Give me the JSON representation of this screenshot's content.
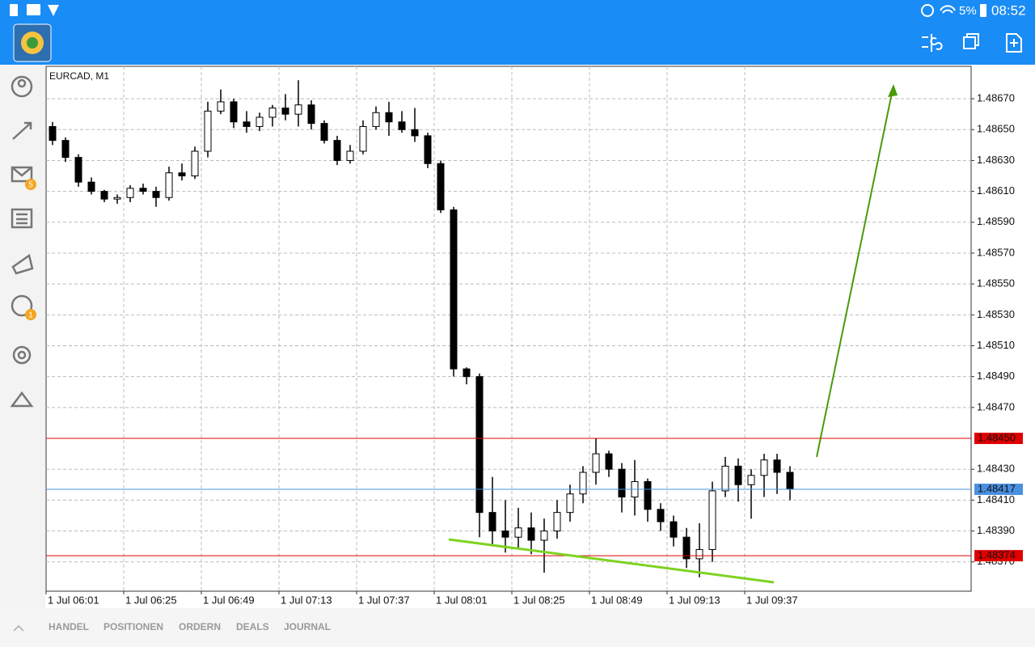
{
  "status_bar": {
    "battery": "5%",
    "time": "08:52"
  },
  "sidebar": {
    "badges": [
      "5",
      "1"
    ]
  },
  "tabs": [
    "HANDEL",
    "POSITIONEN",
    "ORDERN",
    "DEALS",
    "JOURNAL"
  ],
  "chart_data": {
    "type": "candlestick",
    "title": "EURCAD, M1",
    "categories": [
      "1 Jul 06:01",
      null,
      null,
      null,
      null,
      null,
      "1 Jul 06:25",
      null,
      null,
      null,
      null,
      null,
      "1 Jul 06:49",
      null,
      null,
      null,
      null,
      null,
      "1 Jul 07:13",
      null,
      null,
      null,
      null,
      null,
      "1 Jul 07:37",
      null,
      null,
      null,
      null,
      null,
      "1 Jul 08:01",
      null,
      null,
      null,
      null,
      null,
      "1 Jul 08:25",
      null,
      null,
      null,
      null,
      null,
      "1 Jul 08:49",
      null,
      null,
      null,
      null,
      null,
      "1 Jul 09:13",
      null,
      null,
      null,
      null,
      null,
      "1 Jul 09:37",
      null,
      null,
      null,
      null,
      null,
      null,
      null,
      null,
      null,
      null,
      null,
      null,
      null,
      null,
      null,
      null,
      null
    ],
    "open": [
      1.48652,
      1.48643,
      1.48632,
      1.48616,
      1.4861,
      1.48605,
      1.48606,
      1.48612,
      1.4861,
      1.48606,
      1.48622,
      1.4862,
      1.48636,
      1.48662,
      1.48668,
      1.48655,
      1.48652,
      1.48658,
      1.48664,
      1.4866,
      1.48666,
      1.48654,
      1.48643,
      1.4863,
      1.48636,
      1.48652,
      1.48661,
      1.48655,
      1.4865,
      1.48646,
      1.48628,
      1.48598,
      1.48495,
      1.4849,
      1.48402,
      1.4839,
      1.48386,
      1.48392,
      1.48384,
      1.4839,
      1.48402,
      1.48414,
      1.48428,
      1.4844,
      1.4843,
      1.48412,
      1.48422,
      1.48404,
      1.48396,
      1.48386,
      1.48372,
      1.48378,
      1.48416,
      1.48432,
      1.4842,
      1.48426,
      1.48436,
      1.48428,
      null,
      null,
      null,
      null,
      null,
      null,
      null,
      null,
      null,
      null,
      null,
      null,
      null,
      null
    ],
    "high": [
      1.48655,
      1.48645,
      1.48634,
      1.48619,
      1.48611,
      1.48608,
      1.48614,
      1.48615,
      1.48613,
      1.48626,
      1.48628,
      1.48639,
      1.48668,
      1.48676,
      1.4867,
      1.48662,
      1.48661,
      1.48666,
      1.48673,
      1.48682,
      1.48669,
      1.48656,
      1.48646,
      1.4864,
      1.48656,
      1.48665,
      1.48668,
      1.48662,
      1.48664,
      1.48648,
      1.4863,
      1.486,
      1.48496,
      1.48492,
      1.48425,
      1.4841,
      1.48405,
      1.48402,
      1.48398,
      1.4841,
      1.4842,
      1.48432,
      1.4845,
      1.48442,
      1.48434,
      1.48436,
      1.48424,
      1.48408,
      1.484,
      1.48392,
      1.48395,
      1.48422,
      1.48438,
      1.48437,
      1.4843,
      1.4844,
      1.4844,
      1.48432,
      null,
      null,
      null,
      null,
      null,
      null,
      null,
      null,
      null,
      null,
      null,
      null,
      null,
      null
    ],
    "low": [
      1.4864,
      1.48629,
      1.48613,
      1.48608,
      1.48603,
      1.48602,
      1.48603,
      1.48608,
      1.486,
      1.48604,
      1.48617,
      1.48618,
      1.48632,
      1.4866,
      1.48651,
      1.48648,
      1.48649,
      1.48652,
      1.48656,
      1.48652,
      1.4865,
      1.48641,
      1.48627,
      1.48628,
      1.48634,
      1.4865,
      1.48646,
      1.48648,
      1.48642,
      1.48625,
      1.48596,
      1.4849,
      1.48485,
      1.48386,
      1.4838,
      1.48376,
      1.48378,
      1.48375,
      1.48363,
      1.48385,
      1.48396,
      1.48408,
      1.4842,
      1.48425,
      1.48402,
      1.484,
      1.48396,
      1.4839,
      1.4838,
      1.48366,
      1.4836,
      1.4837,
      1.48412,
      1.48409,
      1.48398,
      1.48412,
      1.48414,
      1.4841,
      null,
      null,
      null,
      null,
      null,
      null,
      null,
      null,
      null,
      null,
      null,
      null,
      null,
      null
    ],
    "close": [
      1.48643,
      1.48632,
      1.48616,
      1.4861,
      1.48605,
      1.48606,
      1.48612,
      1.4861,
      1.48606,
      1.48622,
      1.4862,
      1.48636,
      1.48662,
      1.48668,
      1.48655,
      1.48652,
      1.48658,
      1.48664,
      1.4866,
      1.48666,
      1.48654,
      1.48643,
      1.4863,
      1.48636,
      1.48652,
      1.48661,
      1.48655,
      1.4865,
      1.48646,
      1.48628,
      1.48598,
      1.48495,
      1.4849,
      1.48402,
      1.4839,
      1.48386,
      1.48392,
      1.48384,
      1.4839,
      1.48402,
      1.48414,
      1.48428,
      1.4844,
      1.4843,
      1.48412,
      1.48422,
      1.48404,
      1.48396,
      1.48386,
      1.48372,
      1.48378,
      1.48416,
      1.48432,
      1.4842,
      1.48426,
      1.48436,
      1.48428,
      1.48417,
      null,
      null,
      null,
      null,
      null,
      null,
      null,
      null,
      null,
      null,
      null,
      null,
      null,
      null
    ],
    "color": "#000000",
    "ylim": [
      1.48351,
      1.48691
    ],
    "yticks": [
      {
        "value": 1.4867,
        "label": "1.48670"
      },
      {
        "value": 1.4865,
        "label": "1.48650"
      },
      {
        "value": 1.4863,
        "label": "1.48630"
      },
      {
        "value": 1.4861,
        "label": "1.48610"
      },
      {
        "value": 1.4859,
        "label": "1.48590"
      },
      {
        "value": 1.4857,
        "label": "1.48570"
      },
      {
        "value": 1.4855,
        "label": "1.48550"
      },
      {
        "value": 1.4853,
        "label": "1.48530"
      },
      {
        "value": 1.4851,
        "label": "1.48510"
      },
      {
        "value": 1.4849,
        "label": "1.48490"
      },
      {
        "value": 1.4847,
        "label": "1.48470"
      },
      {
        "value": 1.4843,
        "label": "1.48430"
      },
      {
        "value": 1.4841,
        "label": "1.48410"
      },
      {
        "value": 1.4839,
        "label": "1.48390"
      },
      {
        "value": 1.4837,
        "label": "1.48370"
      }
    ],
    "grid": true,
    "levels": [
      {
        "value": 1.4845,
        "label": "1.48450",
        "color": "#e00000"
      },
      {
        "value": 1.48417,
        "label": "1.48417",
        "color": "#4a90e2"
      },
      {
        "value": 1.48374,
        "label": "1.48374",
        "color": "#e00000"
      }
    ]
  }
}
